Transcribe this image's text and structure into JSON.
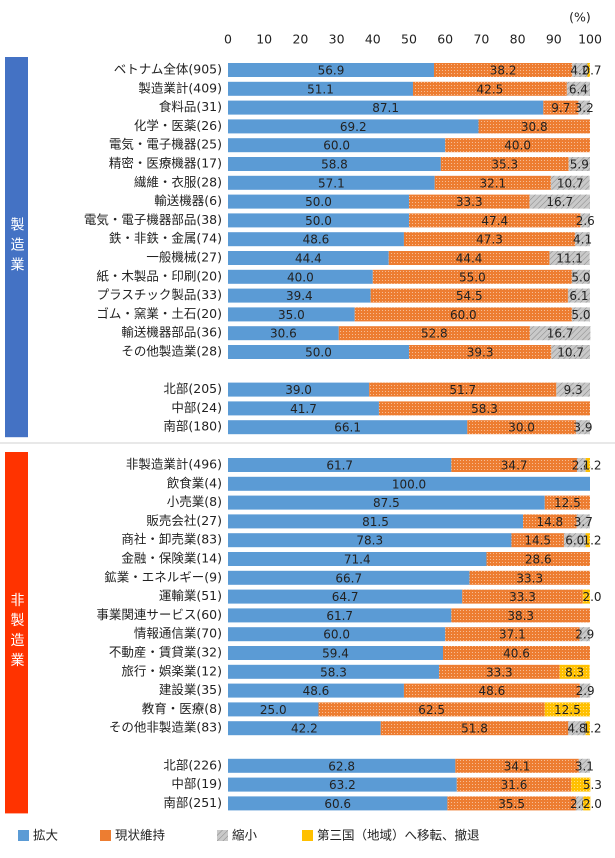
{
  "chart_data": {
    "type": "bar",
    "orientation": "horizontal",
    "stacked": true,
    "unit": "(%)",
    "xlim": [
      0,
      100
    ],
    "xticks": [
      0,
      10,
      20,
      30,
      40,
      50,
      60,
      70,
      80,
      90,
      100
    ],
    "series": [
      {
        "name": "拡大",
        "color": "#5b9bd5",
        "pattern": "none"
      },
      {
        "name": "現状維持",
        "color": "#ed7d31",
        "pattern": "dots"
      },
      {
        "name": "縮小",
        "color": "#c9c9c9",
        "pattern": "hatch"
      },
      {
        "name": "第三国（地域）へ移転、撤退",
        "color": "#ffc000",
        "pattern": "dots"
      }
    ],
    "groups": [
      {
        "label": "製造業",
        "color": "#4472c4",
        "categories": [
          "ベトナム全体(905)",
          "製造業計(409)",
          "食料品(31)",
          "化学・医薬(26)",
          "電気・電子機器(25)",
          "精密・医療機器(17)",
          "繊維・衣服(28)",
          "輸送機器(6)",
          "電気・電子機器部品(38)",
          "鉄・非鉄・金属(74)",
          "一般機械(27)",
          "紙・木製品・印刷(20)",
          "プラスチック製品(33)",
          "ゴム・窯業・土石(20)",
          "輸送機器部品(36)",
          "その他製造業(28)",
          null,
          "北部(205)",
          "中部(24)",
          "南部(180)"
        ],
        "series": [
          {
            "values": [
              56.9,
              51.1,
              87.1,
              69.2,
              60.0,
              58.8,
              57.1,
              50.0,
              50.0,
              48.6,
              44.4,
              40.0,
              39.4,
              35.0,
              30.6,
              50.0,
              null,
              39.0,
              41.7,
              66.1
            ],
            "value_labels": [
              "56.9",
              "51.1",
              "87.1",
              "69.2",
              "60.0",
              "58.8",
              "57.1",
              "50.0",
              "50.0",
              "48.6",
              "44.4",
              "40.0",
              "39.4",
              "35.0",
              "30.6",
              "50.0",
              null,
              "39.0",
              "41.7",
              "66.1"
            ]
          },
          {
            "values": [
              38.2,
              42.5,
              9.7,
              30.8,
              40.0,
              35.3,
              32.1,
              33.3,
              47.4,
              47.3,
              44.4,
              55.0,
              54.5,
              60.0,
              52.8,
              39.3,
              null,
              51.7,
              58.3,
              30.0
            ],
            "value_labels": [
              "38.2",
              "42.5",
              "9.7",
              "30.8",
              "40.0",
              "35.3",
              "32.1",
              "33.3",
              "47.4",
              "47.3",
              "44.4",
              "55.0",
              "54.5",
              "60.0",
              "52.8",
              "39.3",
              null,
              "51.7",
              "58.3",
              "30.0"
            ]
          },
          {
            "values": [
              4.2,
              6.4,
              3.2,
              null,
              null,
              5.9,
              10.7,
              16.7,
              2.6,
              4.1,
              11.1,
              5.0,
              6.1,
              5.0,
              16.7,
              10.7,
              null,
              9.3,
              null,
              3.9
            ],
            "value_labels": [
              "4.2",
              "6.4",
              "3.2",
              null,
              null,
              "5.9",
              "10.7",
              "16.7",
              "2.6",
              "4.1",
              "11.1",
              "5.0",
              "6.1",
              "5.0",
              "16.7",
              "10.7",
              null,
              "9.3",
              null,
              "3.9"
            ]
          },
          {
            "values": [
              0.7,
              null,
              null,
              null,
              null,
              null,
              null,
              null,
              null,
              null,
              null,
              null,
              null,
              null,
              null,
              null,
              null,
              null,
              null,
              null
            ],
            "value_labels": [
              "0.7",
              null,
              null,
              null,
              null,
              null,
              null,
              null,
              null,
              null,
              null,
              null,
              null,
              null,
              null,
              null,
              null,
              null,
              null,
              null
            ]
          }
        ]
      },
      {
        "label": "非製造業",
        "color": "#ff3300",
        "categories": [
          "非製造業計(496)",
          "飲食業(4)",
          "小売業(8)",
          "販売会社(27)",
          "商社・卸売業(83)",
          "金融・保険業(14)",
          "鉱業・エネルギー(9)",
          "運輸業(51)",
          "事業関連サービス(60)",
          "情報通信業(70)",
          "不動産・賃貸業(32)",
          "旅行・娯楽業(12)",
          "建設業(35)",
          "教育・医療(8)",
          "その他非製造業(83)",
          null,
          "北部(226)",
          "中部(19)",
          "南部(251)"
        ],
        "series": [
          {
            "values": [
              61.7,
              100.0,
              87.5,
              81.5,
              78.3,
              71.4,
              66.7,
              64.7,
              61.7,
              60.0,
              59.4,
              58.3,
              48.6,
              25.0,
              42.2,
              null,
              62.8,
              63.2,
              60.6
            ],
            "value_labels": [
              "61.7",
              "100.0",
              "87.5",
              "81.5",
              "78.3",
              "71.4",
              "66.7",
              "64.7",
              "61.7",
              "60.0",
              "59.4",
              "58.3",
              "48.6",
              "25.0",
              "42.2",
              null,
              "62.8",
              "63.2",
              "60.6"
            ]
          },
          {
            "values": [
              34.7,
              null,
              12.5,
              14.8,
              14.5,
              28.6,
              33.3,
              33.3,
              38.3,
              37.1,
              40.6,
              33.3,
              48.6,
              62.5,
              51.8,
              null,
              34.1,
              31.6,
              35.5
            ],
            "value_labels": [
              "34.7",
              null,
              "12.5",
              "14.8",
              "14.5",
              "28.6",
              "33.3",
              "33.3",
              "38.3",
              "37.1",
              "40.6",
              "33.3",
              "48.6",
              "62.5",
              "51.8",
              null,
              "34.1",
              "31.6",
              "35.5"
            ]
          },
          {
            "values": [
              2.4,
              null,
              null,
              3.7,
              6.0,
              null,
              null,
              null,
              null,
              2.9,
              null,
              null,
              2.9,
              null,
              4.8,
              null,
              3.1,
              null,
              2.0
            ],
            "value_labels": [
              "2.4",
              null,
              null,
              "3.7",
              "6.0",
              null,
              null,
              null,
              null,
              "2.9",
              null,
              null,
              "2.9",
              null,
              "4.8",
              null,
              "3.1",
              null,
              "2.0"
            ]
          },
          {
            "values": [
              1.2,
              null,
              null,
              null,
              1.2,
              null,
              null,
              2.0,
              null,
              null,
              null,
              8.3,
              null,
              12.5,
              1.2,
              null,
              null,
              5.3,
              2.0
            ],
            "value_labels": [
              "1.2",
              null,
              null,
              null,
              "1.2",
              null,
              null,
              "2.0",
              null,
              null,
              null,
              "8.3",
              null,
              "12.5",
              "1.2",
              null,
              null,
              "5.3",
              "2.0"
            ]
          }
        ]
      }
    ]
  }
}
